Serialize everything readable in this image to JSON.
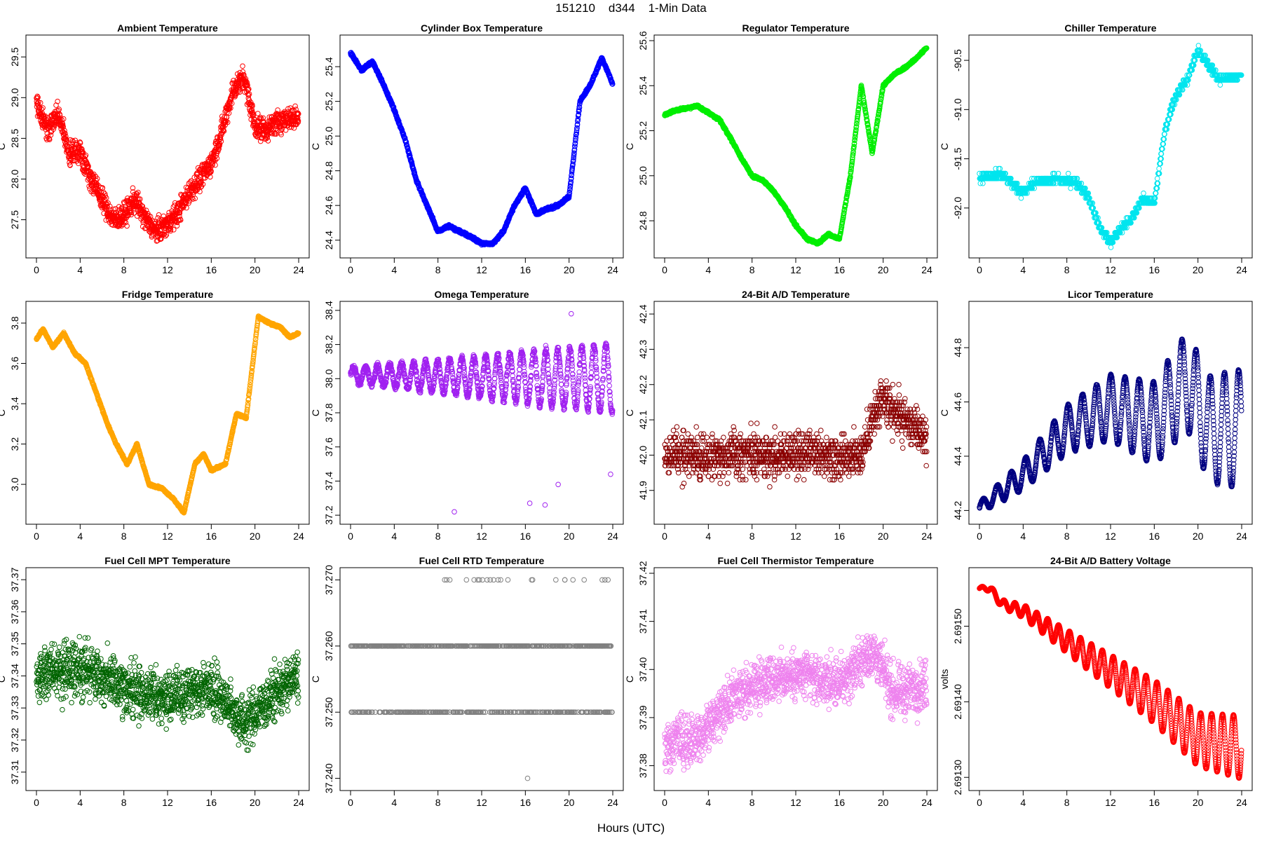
{
  "figure": {
    "title": "151210    d344    1-Min Data",
    "xlabel": "Hours (UTC)"
  },
  "chart_data": [
    {
      "type": "scatter",
      "title": "Ambient Temperature",
      "ylabel": "C",
      "color": "#ff0000",
      "xlim": [
        0,
        24
      ],
      "ylim": [
        27.1,
        29.7
      ],
      "xticks": [
        "0",
        "4",
        "8",
        "12",
        "16",
        "20",
        "24"
      ],
      "yticks": [
        "27.5",
        "28.0",
        "28.5",
        "29.0",
        "29.5"
      ],
      "shape": [
        [
          0,
          28.95
        ],
        [
          1,
          28.6
        ],
        [
          2,
          28.8
        ],
        [
          3,
          28.3
        ],
        [
          4,
          28.35
        ],
        [
          5,
          28.0
        ],
        [
          6,
          27.75
        ],
        [
          7,
          27.5
        ],
        [
          8,
          27.55
        ],
        [
          9,
          27.75
        ],
        [
          10,
          27.5
        ],
        [
          11,
          27.35
        ],
        [
          12,
          27.45
        ],
        [
          13,
          27.6
        ],
        [
          14,
          27.85
        ],
        [
          15,
          28.0
        ],
        [
          16,
          28.2
        ],
        [
          17,
          28.6
        ],
        [
          18,
          29.1
        ],
        [
          19,
          29.25
        ],
        [
          20,
          28.65
        ],
        [
          21,
          28.6
        ],
        [
          22,
          28.7
        ],
        [
          23,
          28.75
        ],
        [
          24,
          28.75
        ]
      ],
      "noise": 0.14
    },
    {
      "type": "scatter",
      "title": "Cylinder Box Temperature",
      "ylabel": "C",
      "color": "#0000ff",
      "xlim": [
        0,
        24
      ],
      "ylim": [
        24.33,
        25.55
      ],
      "xticks": [
        "0",
        "4",
        "8",
        "12",
        "16",
        "20",
        "24"
      ],
      "yticks": [
        "24.4",
        "24.6",
        "24.8",
        "25.0",
        "25.2",
        "25.4"
      ],
      "shape": [
        [
          0,
          25.48
        ],
        [
          1,
          25.38
        ],
        [
          2,
          25.43
        ],
        [
          3,
          25.3
        ],
        [
          4,
          25.15
        ],
        [
          5,
          24.98
        ],
        [
          6,
          24.75
        ],
        [
          7,
          24.6
        ],
        [
          8,
          24.45
        ],
        [
          9,
          24.48
        ],
        [
          10,
          24.45
        ],
        [
          11,
          24.42
        ],
        [
          12,
          24.38
        ],
        [
          13,
          24.38
        ],
        [
          14,
          24.45
        ],
        [
          15,
          24.6
        ],
        [
          16,
          24.7
        ],
        [
          17,
          24.55
        ],
        [
          18,
          24.58
        ],
        [
          19,
          24.6
        ],
        [
          20,
          24.65
        ],
        [
          21,
          25.2
        ],
        [
          22,
          25.3
        ],
        [
          23,
          25.45
        ],
        [
          24,
          25.3
        ]
      ],
      "noise": 0.008
    },
    {
      "type": "scatter",
      "title": "Regulator Temperature",
      "ylabel": "C",
      "color": "#00ee00",
      "xlim": [
        0,
        24
      ],
      "ylim": [
        24.66,
        25.6
      ],
      "xticks": [
        "0",
        "4",
        "8",
        "12",
        "16",
        "20",
        "24"
      ],
      "yticks": [
        "24.8",
        "25.0",
        "25.2",
        "25.4",
        "25.6"
      ],
      "shape": [
        [
          0,
          25.27
        ],
        [
          1,
          25.29
        ],
        [
          2,
          25.3
        ],
        [
          3,
          25.31
        ],
        [
          4,
          25.28
        ],
        [
          5,
          25.25
        ],
        [
          6,
          25.17
        ],
        [
          7,
          25.08
        ],
        [
          8,
          25.0
        ],
        [
          9,
          24.98
        ],
        [
          10,
          24.93
        ],
        [
          11,
          24.86
        ],
        [
          12,
          24.78
        ],
        [
          13,
          24.72
        ],
        [
          14,
          24.7
        ],
        [
          15,
          24.74
        ],
        [
          16,
          24.72
        ],
        [
          17,
          25.0
        ],
        [
          18,
          25.4
        ],
        [
          19,
          25.1
        ],
        [
          20,
          25.4
        ],
        [
          21,
          25.45
        ],
        [
          22,
          25.48
        ],
        [
          23,
          25.52
        ],
        [
          24,
          25.57
        ]
      ],
      "noise": 0.005
    },
    {
      "type": "scatter",
      "title": "Chiller Temperature",
      "ylabel": "C",
      "color": "#00e5ee",
      "xlim": [
        0,
        24
      ],
      "ylim": [
        -92.45,
        -90.3
      ],
      "xticks": [
        "0",
        "4",
        "8",
        "12",
        "16",
        "20",
        "24"
      ],
      "yticks": [
        "-92.0",
        "-91.5",
        "-91.0",
        "-90.5"
      ],
      "shape": [
        [
          0,
          -91.7
        ],
        [
          2,
          -91.65
        ],
        [
          3,
          -91.75
        ],
        [
          4,
          -91.85
        ],
        [
          5,
          -91.75
        ],
        [
          7,
          -91.7
        ],
        [
          9,
          -91.75
        ],
        [
          10,
          -91.9
        ],
        [
          11,
          -92.2
        ],
        [
          12,
          -92.35
        ],
        [
          13,
          -92.2
        ],
        [
          14,
          -92.1
        ],
        [
          15,
          -91.9
        ],
        [
          16,
          -91.95
        ],
        [
          17,
          -91.2
        ],
        [
          18,
          -90.85
        ],
        [
          19,
          -90.7
        ],
        [
          20,
          -90.4
        ],
        [
          21,
          -90.55
        ],
        [
          22,
          -90.7
        ],
        [
          24,
          -90.65
        ]
      ],
      "noise": 0.04,
      "quant": 0.05
    },
    {
      "type": "scatter",
      "title": "Fridge Temperature",
      "ylabel": "C",
      "color": "#ffa500",
      "xlim": [
        0,
        24
      ],
      "ylim": [
        2.83,
        3.88
      ],
      "xticks": [
        "0",
        "4",
        "8",
        "12",
        "16",
        "20",
        "24"
      ],
      "yticks": [
        "3.0",
        "3.2",
        "3.4",
        "3.6",
        "3.8"
      ],
      "shape": [
        [
          0,
          3.72
        ],
        [
          0.6,
          3.77
        ],
        [
          1.5,
          3.68
        ],
        [
          2.5,
          3.75
        ],
        [
          3.5,
          3.65
        ],
        [
          4.5,
          3.6
        ],
        [
          5.5,
          3.45
        ],
        [
          6.5,
          3.3
        ],
        [
          7.3,
          3.2
        ],
        [
          8.3,
          3.1
        ],
        [
          9.2,
          3.2
        ],
        [
          10.3,
          3.0
        ],
        [
          11.5,
          2.98
        ],
        [
          12.5,
          2.93
        ],
        [
          13.5,
          2.86
        ],
        [
          14.5,
          3.1
        ],
        [
          15.3,
          3.15
        ],
        [
          16,
          3.07
        ],
        [
          17.3,
          3.1
        ],
        [
          18.3,
          3.35
        ],
        [
          19.2,
          3.33
        ],
        [
          20.3,
          3.83
        ],
        [
          21.3,
          3.8
        ],
        [
          22.3,
          3.78
        ],
        [
          23.2,
          3.73
        ],
        [
          24,
          3.75
        ]
      ],
      "noise": 0.005
    },
    {
      "type": "scatter",
      "title": "Omega Temperature",
      "ylabel": "C",
      "color": "#a020f0",
      "xlim": [
        0,
        24
      ],
      "ylim": [
        37.18,
        38.42
      ],
      "xticks": [
        "0",
        "4",
        "8",
        "12",
        "16",
        "20",
        "24"
      ],
      "yticks": [
        "37.2",
        "37.4",
        "37.6",
        "37.8",
        "38.0",
        "38.2",
        "38.4"
      ],
      "shape": [
        [
          0,
          38.02
        ],
        [
          24,
          38.0
        ]
      ],
      "wave": {
        "base": 0.04,
        "grow": 0.16,
        "period": 1.1
      },
      "outliers": [
        [
          9.5,
          37.22
        ],
        [
          16.4,
          37.27
        ],
        [
          17.8,
          37.26
        ],
        [
          19,
          37.38
        ],
        [
          23.8,
          37.44
        ],
        [
          20.2,
          38.38
        ]
      ],
      "noise": 0.02
    },
    {
      "type": "scatter",
      "title": "24-Bit A/D Temperature",
      "ylabel": "C",
      "color": "#8b0000",
      "xlim": [
        0,
        24
      ],
      "ylim": [
        41.82,
        42.42
      ],
      "xticks": [
        "0",
        "4",
        "8",
        "12",
        "16",
        "20",
        "24"
      ],
      "yticks": [
        "41.9",
        "42.0",
        "42.1",
        "42.2",
        "42.3",
        "42.4"
      ],
      "shape": [
        [
          0,
          42.0
        ],
        [
          18,
          42.0
        ],
        [
          19,
          42.1
        ],
        [
          20,
          42.15
        ],
        [
          22,
          42.1
        ],
        [
          24,
          42.05
        ]
      ],
      "noise": 0.06,
      "quant": 0.01
    },
    {
      "type": "scatter",
      "title": "Licor Temperature",
      "ylabel": "C",
      "color": "#000080",
      "xlim": [
        0,
        24
      ],
      "ylim": [
        44.17,
        44.95
      ],
      "xticks": [
        "0",
        "4",
        "8",
        "12",
        "16",
        "20",
        "24"
      ],
      "yticks": [
        "44.2",
        "44.4",
        "44.6",
        "44.8"
      ],
      "shape": [
        [
          0,
          44.21
        ],
        [
          4,
          44.33
        ],
        [
          8,
          44.5
        ],
        [
          12,
          44.58
        ],
        [
          16,
          44.52
        ],
        [
          19,
          44.68
        ],
        [
          21,
          44.5
        ],
        [
          24,
          44.5
        ]
      ],
      "wave": {
        "base": 0.02,
        "grow": 0.2,
        "period": 1.3
      },
      "noise": 0.003
    },
    {
      "type": "scatter",
      "title": "Fuel Cell MPT Temperature",
      "ylabel": "C",
      "color": "#006400",
      "xlim": [
        0,
        24
      ],
      "ylim": [
        37.306,
        37.372
      ],
      "xticks": [
        "0",
        "4",
        "8",
        "12",
        "16",
        "20",
        "24"
      ],
      "yticks": [
        "37.31",
        "37.32",
        "37.33",
        "37.34",
        "37.35",
        "37.36",
        "37.37"
      ],
      "shape": [
        [
          0,
          37.34
        ],
        [
          4,
          37.343
        ],
        [
          8,
          37.336
        ],
        [
          12,
          37.333
        ],
        [
          16,
          37.337
        ],
        [
          19,
          37.325
        ],
        [
          22,
          37.335
        ],
        [
          24,
          37.34
        ]
      ],
      "noise": 0.008
    },
    {
      "type": "scatter",
      "title": "Fuel Cell RTD Temperature",
      "ylabel": "C",
      "color": "#808080",
      "xlim": [
        0,
        24
      ],
      "ylim": [
        37.239,
        37.271
      ],
      "xticks": [
        "0",
        "4",
        "8",
        "12",
        "16",
        "20",
        "24"
      ],
      "yticks": [
        "37.240",
        "37.250",
        "37.260",
        "37.270"
      ],
      "levels": [
        37.25,
        37.26
      ],
      "top": 37.27,
      "outliers": [
        [
          16.2,
          37.24
        ]
      ]
    },
    {
      "type": "scatter",
      "title": "Fuel Cell Thermistor Temperature",
      "ylabel": "C",
      "color": "#ee82ee",
      "xlim": [
        0,
        24
      ],
      "ylim": [
        37.376,
        37.42
      ],
      "xticks": [
        "0",
        "4",
        "8",
        "12",
        "16",
        "20",
        "24"
      ],
      "yticks": [
        "37.38",
        "37.39",
        "37.40",
        "37.41",
        "37.42"
      ],
      "shape": [
        [
          0,
          37.384
        ],
        [
          3,
          37.386
        ],
        [
          6,
          37.393
        ],
        [
          9,
          37.398
        ],
        [
          12,
          37.399
        ],
        [
          16,
          37.397
        ],
        [
          19,
          37.404
        ],
        [
          21,
          37.395
        ],
        [
          24,
          37.397
        ]
      ],
      "noise": 0.005
    },
    {
      "type": "scatter",
      "title": "24-Bit A/D Battery Voltage",
      "ylabel": "volts",
      "color": "#ff0000",
      "xlim": [
        0,
        24
      ],
      "ylim": [
        2.69129,
        2.69157
      ],
      "xticks": [
        "0",
        "4",
        "8",
        "12",
        "16",
        "20",
        "24"
      ],
      "yticks": [
        "2.69130",
        "2.69140",
        "2.69150"
      ],
      "shape": [
        [
          0,
          2.69155
        ],
        [
          1,
          2.69155
        ],
        [
          2,
          2.69153
        ],
        [
          4,
          2.69152
        ],
        [
          8,
          2.69148
        ],
        [
          12,
          2.69144
        ],
        [
          16,
          2.6914
        ],
        [
          20,
          2.69135
        ],
        [
          24,
          2.69134
        ]
      ],
      "wave": {
        "base": 2e-06,
        "grow": 4e-05,
        "period": 1.0
      }
    }
  ]
}
